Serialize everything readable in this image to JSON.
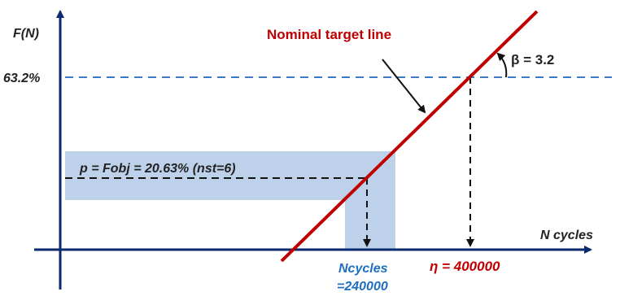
{
  "axes": {
    "y_label": "F(N)",
    "x_label": "N cycles",
    "y_tick_label": "63.2%"
  },
  "line": {
    "label": "Nominal target line",
    "beta_label": "β = 3.2"
  },
  "band": {
    "label": "p = Fobj = 20.63% (nst=6)"
  },
  "markers": {
    "eta_label": "η = 400000",
    "ncycles_line1": "Ncycles",
    "ncycles_line2": "=240000"
  },
  "colors": {
    "axis": "#0b2a6e",
    "target_line": "#c00000",
    "dashed_blue": "#3d7ac4",
    "band_fill": "#bdd1ea",
    "eta_text": "#c00000",
    "ncycles_text": "#1f6fc1",
    "text_dark": "#222222"
  }
}
